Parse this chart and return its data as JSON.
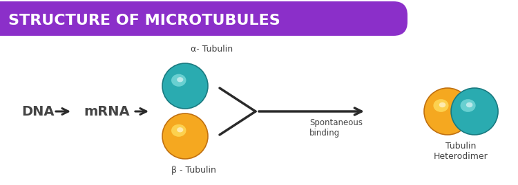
{
  "title": "STRUCTURE OF MICROTUBULES",
  "title_bg_color": "#8B2FC9",
  "title_text_color": "#FFFFFF",
  "bg_color": "#FFFFFF",
  "dna_label": "DNA",
  "mrna_label": "mRNA",
  "alpha_label": "α- Tubulin",
  "beta_label": "β - Tubulin",
  "spontaneous_label": "Spontaneous\nbinding",
  "heterodimer_label": "Tubulin\nHeterodimer",
  "teal_color": "#2AABB0",
  "teal_dark": "#1A7A80",
  "teal_light": "#7FDDDD",
  "orange_color": "#F5A820",
  "orange_dark": "#C07010",
  "orange_light": "#FFE060",
  "arrow_color": "#2A2A2A",
  "label_color": "#444444",
  "outline_color": "#555555",
  "fig_w": 7.5,
  "fig_h": 2.69,
  "dpi": 100
}
